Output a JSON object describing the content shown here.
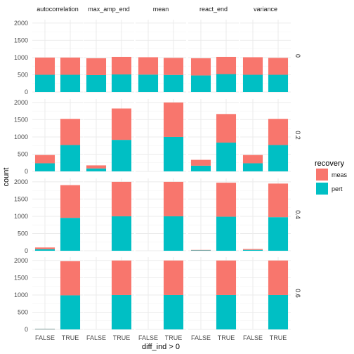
{
  "chart_data": {
    "type": "bar",
    "stacked": true,
    "xlabel": "diff_ind > 0",
    "ylabel": "count",
    "x_categories": [
      "FALSE",
      "TRUE"
    ],
    "column_facets": [
      "autocorrelation",
      "max_amp_end",
      "mean",
      "react_end",
      "variance"
    ],
    "row_facets": [
      "0",
      "0.2",
      "0.4",
      "0.6"
    ],
    "y_ticks": [
      0,
      500,
      1000,
      1500,
      2000
    ],
    "ylim": [
      0,
      2100
    ],
    "grid": true,
    "legend": {
      "title": "recovery",
      "position": "right",
      "entries": [
        {
          "name": "meas",
          "color": "#F8766D"
        },
        {
          "name": "pert",
          "color": "#00BFC4"
        }
      ]
    },
    "colors": {
      "meas": "#F8766D",
      "pert": "#00BFC4"
    },
    "panels": [
      {
        "row": "0",
        "col": "autocorrelation",
        "FALSE": {
          "pert": 500,
          "meas": 500
        },
        "TRUE": {
          "pert": 500,
          "meas": 500
        }
      },
      {
        "row": "0",
        "col": "max_amp_end",
        "FALSE": {
          "pert": 490,
          "meas": 490
        },
        "TRUE": {
          "pert": 510,
          "meas": 510
        }
      },
      {
        "row": "0",
        "col": "mean",
        "FALSE": {
          "pert": 505,
          "meas": 505
        },
        "TRUE": {
          "pert": 495,
          "meas": 495
        }
      },
      {
        "row": "0",
        "col": "react_end",
        "FALSE": {
          "pert": 480,
          "meas": 500
        },
        "TRUE": {
          "pert": 520,
          "meas": 500
        }
      },
      {
        "row": "0",
        "col": "variance",
        "FALSE": {
          "pert": 500,
          "meas": 510
        },
        "TRUE": {
          "pert": 500,
          "meas": 490
        }
      },
      {
        "row": "0.2",
        "col": "autocorrelation",
        "FALSE": {
          "pert": 235,
          "meas": 240
        },
        "TRUE": {
          "pert": 765,
          "meas": 760
        }
      },
      {
        "row": "0.2",
        "col": "max_amp_end",
        "FALSE": {
          "pert": 85,
          "meas": 90
        },
        "TRUE": {
          "pert": 915,
          "meas": 910
        }
      },
      {
        "row": "0.2",
        "col": "mean",
        "FALSE": {
          "pert": 0,
          "meas": 0
        },
        "TRUE": {
          "pert": 1000,
          "meas": 1000
        }
      },
      {
        "row": "0.2",
        "col": "react_end",
        "FALSE": {
          "pert": 165,
          "meas": 170
        },
        "TRUE": {
          "pert": 835,
          "meas": 830
        }
      },
      {
        "row": "0.2",
        "col": "variance",
        "FALSE": {
          "pert": 235,
          "meas": 240
        },
        "TRUE": {
          "pert": 765,
          "meas": 760
        }
      },
      {
        "row": "0.4",
        "col": "autocorrelation",
        "FALSE": {
          "pert": 45,
          "meas": 50
        },
        "TRUE": {
          "pert": 955,
          "meas": 950
        }
      },
      {
        "row": "0.4",
        "col": "max_amp_end",
        "FALSE": {
          "pert": 0,
          "meas": 0
        },
        "TRUE": {
          "pert": 1000,
          "meas": 1000
        }
      },
      {
        "row": "0.4",
        "col": "mean",
        "FALSE": {
          "pert": 0,
          "meas": 0
        },
        "TRUE": {
          "pert": 1000,
          "meas": 1000
        }
      },
      {
        "row": "0.4",
        "col": "react_end",
        "FALSE": {
          "pert": 12,
          "meas": 13
        },
        "TRUE": {
          "pert": 988,
          "meas": 987
        }
      },
      {
        "row": "0.4",
        "col": "variance",
        "FALSE": {
          "pert": 25,
          "meas": 25
        },
        "TRUE": {
          "pert": 975,
          "meas": 975
        }
      },
      {
        "row": "0.6",
        "col": "autocorrelation",
        "FALSE": {
          "pert": 10,
          "meas": 10
        },
        "TRUE": {
          "pert": 990,
          "meas": 990
        }
      },
      {
        "row": "0.6",
        "col": "max_amp_end",
        "FALSE": {
          "pert": 0,
          "meas": 0
        },
        "TRUE": {
          "pert": 1000,
          "meas": 1000
        }
      },
      {
        "row": "0.6",
        "col": "mean",
        "FALSE": {
          "pert": 0,
          "meas": 0
        },
        "TRUE": {
          "pert": 1000,
          "meas": 1000
        }
      },
      {
        "row": "0.6",
        "col": "react_end",
        "FALSE": {
          "pert": 0,
          "meas": 0
        },
        "TRUE": {
          "pert": 1000,
          "meas": 1000
        }
      },
      {
        "row": "0.6",
        "col": "variance",
        "FALSE": {
          "pert": 0,
          "meas": 0
        },
        "TRUE": {
          "pert": 1000,
          "meas": 1000
        }
      }
    ]
  }
}
